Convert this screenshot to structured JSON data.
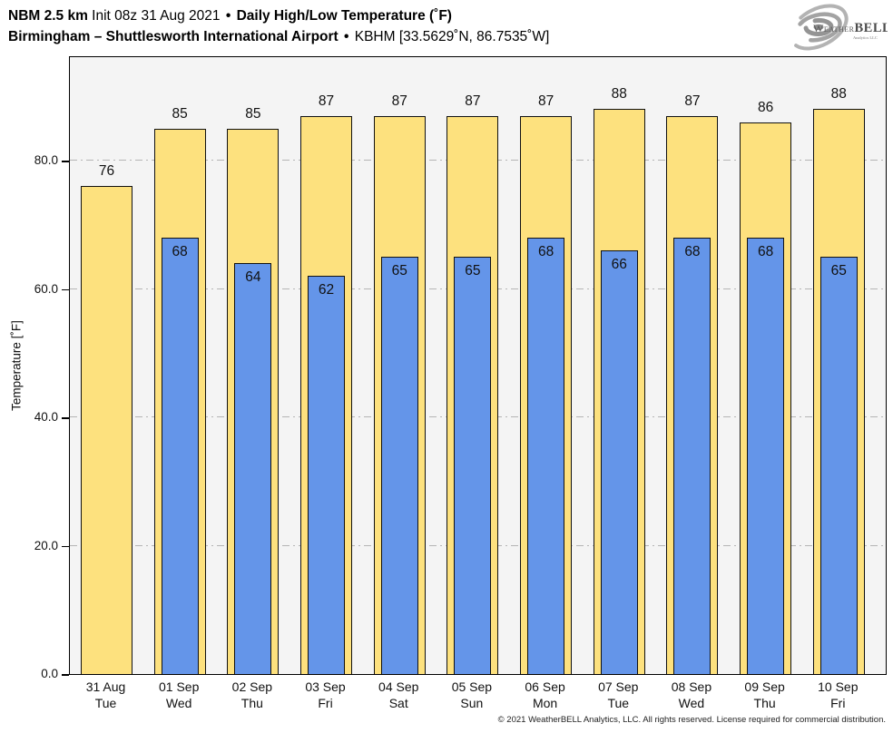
{
  "header": {
    "model": "NBM 2.5 km",
    "init": " Init 08z 31 Aug 2021 ",
    "sep": "•",
    "product": " Daily High/Low Temperature (˚F)",
    "location": "Birmingham – Shuttlesworth International Airport",
    "station": " KBHM [33.5629˚N, 86.7535˚W]"
  },
  "logo": {
    "brand_part1": "Weather",
    "brand_part2": "BELL",
    "brand_sub": "Analytics LLC"
  },
  "chart_data": {
    "type": "bar",
    "title": "Daily High/Low Temperature (˚F)",
    "categories": [
      "31 Aug",
      "01 Sep",
      "02 Sep",
      "03 Sep",
      "04 Sep",
      "05 Sep",
      "06 Sep",
      "07 Sep",
      "08 Sep",
      "09 Sep",
      "10 Sep"
    ],
    "weekdays": [
      "Tue",
      "Wed",
      "Thu",
      "Fri",
      "Sat",
      "Sun",
      "Mon",
      "Tue",
      "Wed",
      "Thu",
      "Fri"
    ],
    "series": [
      {
        "name": "Daily High",
        "color": "#fde17e",
        "values": [
          76,
          85,
          85,
          87,
          87,
          87,
          87,
          88,
          87,
          86,
          88
        ]
      },
      {
        "name": "Daily Low",
        "color": "#6495e9",
        "values": [
          null,
          68,
          64,
          62,
          65,
          65,
          68,
          66,
          68,
          68,
          65
        ]
      }
    ],
    "ylabel": "Temperature [˚F]",
    "yticks": [
      0,
      20,
      40,
      60,
      80
    ],
    "ytick_labels": [
      "0.0",
      "20.0",
      "40.0",
      "60.0",
      "80.0"
    ],
    "ylim": [
      0,
      96.4
    ],
    "grid": "horizontal-dashdot",
    "legend_position": "none",
    "bar_edge_color": "#111111",
    "plot_background": "#f4f4f4"
  },
  "footer": {
    "copyright": "© 2021 WeatherBELL Analytics, LLC. All rights reserved. License required for commercial distribution."
  }
}
